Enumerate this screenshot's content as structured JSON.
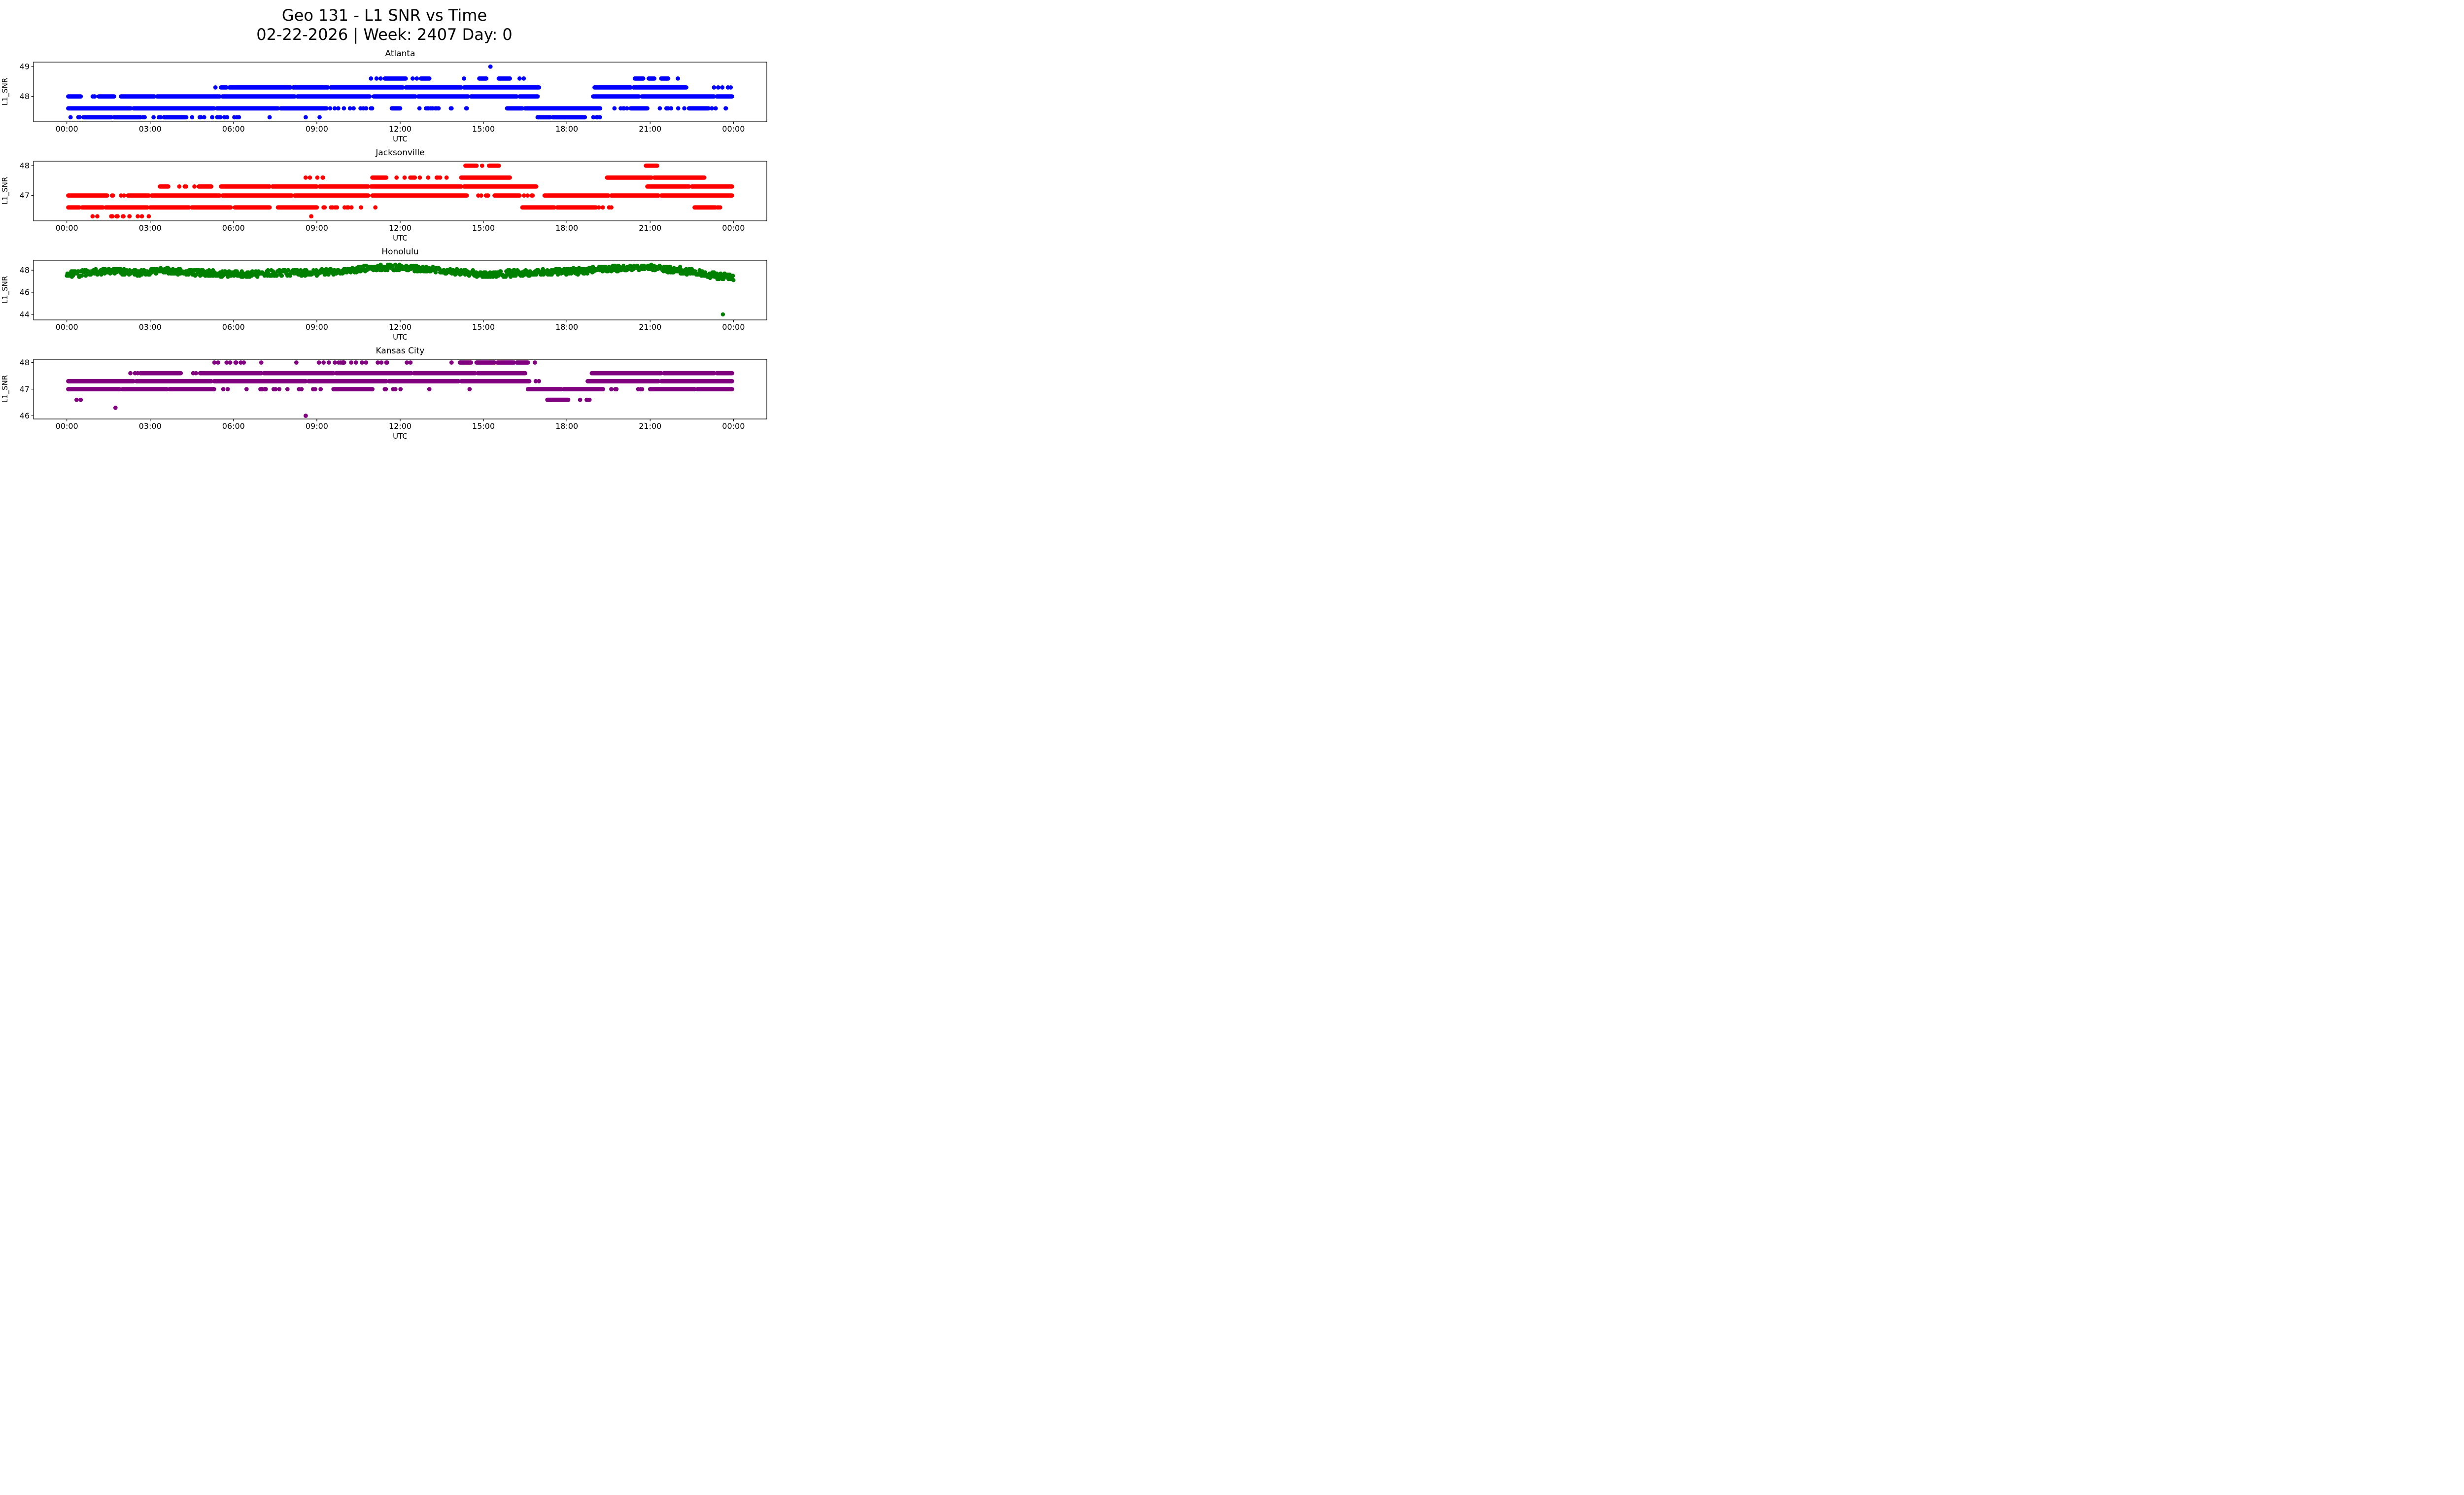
{
  "figure": {
    "title": "Geo 131 - L1 SNR vs Time",
    "subtitle": "02-22-2026 | Week: 2407 Day: 0"
  },
  "chart_data": [
    {
      "type": "scatter",
      "title": "Atlanta",
      "color": "#0000ff",
      "ylabel": "L1_SNR",
      "xlabel": "UTC",
      "ylim": [
        47.15,
        49.15
      ],
      "yticks": [
        48,
        49
      ],
      "xlim": [
        -1.2,
        25.2
      ],
      "xticks": {
        "values": [
          0,
          3,
          6,
          9,
          12,
          15,
          18,
          21,
          24
        ],
        "labels": [
          "00:00",
          "03:00",
          "06:00",
          "09:00",
          "12:00",
          "15:00",
          "18:00",
          "21:00",
          "00:00"
        ]
      },
      "marker_r": 4.4,
      "sparse_density": 6,
      "bands": [
        {
          "y": 49.0,
          "points": [
            15.25
          ]
        },
        {
          "y": 48.6,
          "solid": [
            [
              11.45,
              12.2
            ],
            [
              12.75,
              13.05
            ],
            [
              14.85,
              15.1
            ],
            [
              15.55,
              15.95
            ],
            [
              20.45,
              20.75
            ],
            [
              20.95,
              21.15
            ],
            [
              21.4,
              21.65
            ]
          ],
          "points": [
            10.95,
            11.15,
            11.3,
            12.45,
            12.6,
            14.3,
            16.3,
            16.45,
            22.0
          ]
        },
        {
          "y": 48.3,
          "solid": [
            [
              5.55,
              5.75
            ],
            [
              5.85,
              8.05
            ],
            [
              8.15,
              9.4
            ],
            [
              9.5,
              12.1
            ],
            [
              12.2,
              14.2
            ],
            [
              14.3,
              17.0
            ],
            [
              19.0,
              20.3
            ],
            [
              20.4,
              22.3
            ]
          ],
          "points": [
            5.35,
            23.3,
            23.45,
            23.6,
            23.8,
            23.9
          ]
        },
        {
          "y": 48.0,
          "solid": [
            [
              0.05,
              0.5
            ],
            [
              1.15,
              1.7
            ],
            [
              1.95,
              3.15
            ],
            [
              3.25,
              5.5
            ],
            [
              5.6,
              8.2
            ],
            [
              8.3,
              10.9
            ],
            [
              11.05,
              12.55
            ],
            [
              12.65,
              14.45
            ],
            [
              14.55,
              16.2
            ],
            [
              16.3,
              16.95
            ],
            [
              18.95,
              20.6
            ],
            [
              20.7,
              23.3
            ],
            [
              23.4,
              23.95
            ]
          ],
          "sparse": [
            [
              0.55,
              1.1
            ]
          ]
        },
        {
          "y": 47.6,
          "solid": [
            [
              0.05,
              2.3
            ],
            [
              2.4,
              5.3
            ],
            [
              5.4,
              7.6
            ],
            [
              7.7,
              9.35
            ],
            [
              11.7,
              12.0
            ],
            [
              15.85,
              16.4
            ],
            [
              16.5,
              19.2
            ],
            [
              20.3,
              20.9
            ],
            [
              22.4,
              23.1
            ]
          ],
          "sparse": [
            [
              9.45,
              11.2
            ],
            [
              12.6,
              14.8
            ],
            [
              19.3,
              20.2
            ],
            [
              21.2,
              22.3
            ],
            [
              23.2,
              23.95
            ]
          ]
        },
        {
          "y": 47.3,
          "solid": [
            [
              0.6,
              1.6
            ],
            [
              1.7,
              2.65
            ],
            [
              3.5,
              4.3
            ],
            [
              16.95,
              17.4
            ],
            [
              17.5,
              18.65
            ]
          ],
          "sparse": [
            [
              0.1,
              0.55
            ],
            [
              2.7,
              3.45
            ],
            [
              4.4,
              6.5
            ],
            [
              18.7,
              19.3
            ]
          ],
          "points": [
            7.3,
            8.6,
            9.1
          ]
        }
      ]
    },
    {
      "type": "scatter",
      "title": "Jacksonville",
      "color": "#ff0000",
      "ylabel": "L1_SNR",
      "xlabel": "UTC",
      "ylim": [
        46.15,
        48.15
      ],
      "yticks": [
        47,
        48
      ],
      "xlim": [
        -1.2,
        25.2
      ],
      "xticks": {
        "values": [
          0,
          3,
          6,
          9,
          12,
          15,
          18,
          21,
          24
        ],
        "labels": [
          "00:00",
          "03:00",
          "06:00",
          "09:00",
          "12:00",
          "15:00",
          "18:00",
          "21:00",
          "00:00"
        ]
      },
      "marker_r": 4.4,
      "sparse_density": 6,
      "bands": [
        {
          "y": 48.0,
          "solid": [
            [
              14.35,
              14.75
            ],
            [
              15.2,
              15.55
            ],
            [
              20.85,
              21.25
            ]
          ],
          "points": [
            14.95
          ]
        },
        {
          "y": 47.6,
          "solid": [
            [
              11.0,
              11.5
            ],
            [
              14.2,
              15.95
            ],
            [
              19.45,
              21.05
            ],
            [
              21.15,
              22.95
            ]
          ],
          "sparse": [
            [
              8.5,
              9.3
            ],
            [
              11.7,
              13.7
            ]
          ]
        },
        {
          "y": 47.3,
          "solid": [
            [
              3.35,
              3.65
            ],
            [
              4.75,
              5.2
            ],
            [
              5.55,
              7.3
            ],
            [
              7.4,
              9.0
            ],
            [
              9.1,
              10.85
            ],
            [
              10.95,
              14.2
            ],
            [
              14.3,
              16.9
            ],
            [
              20.9,
              22.4
            ],
            [
              22.5,
              23.95
            ]
          ],
          "sparse": [
            [
              4.0,
              4.6
            ]
          ]
        },
        {
          "y": 47.0,
          "solid": [
            [
              0.05,
              1.45
            ],
            [
              2.2,
              2.95
            ],
            [
              3.05,
              5.5
            ],
            [
              5.6,
              8.1
            ],
            [
              8.2,
              10.85
            ],
            [
              11.0,
              14.4
            ],
            [
              15.4,
              16.3
            ],
            [
              17.2,
              19.5
            ],
            [
              19.6,
              21.3
            ],
            [
              21.4,
              23.95
            ]
          ],
          "sparse": [
            [
              1.5,
              2.1
            ],
            [
              14.5,
              15.3
            ],
            [
              16.4,
              17.1
            ]
          ]
        },
        {
          "y": 46.6,
          "solid": [
            [
              0.05,
              0.45
            ],
            [
              0.55,
              1.3
            ],
            [
              1.4,
              2.9
            ],
            [
              3.0,
              4.4
            ],
            [
              4.5,
              5.9
            ],
            [
              6.05,
              7.3
            ],
            [
              7.6,
              9.0
            ],
            [
              16.4,
              17.55
            ],
            [
              17.65,
              19.05
            ],
            [
              22.6,
              23.35
            ]
          ],
          "sparse": [
            [
              9.2,
              11.2
            ],
            [
              19.1,
              19.7
            ],
            [
              23.4,
              23.9
            ]
          ]
        },
        {
          "y": 46.3,
          "sparse": [
            [
              0.5,
              3.2
            ]
          ],
          "points": [
            8.8
          ]
        }
      ]
    },
    {
      "type": "scatter",
      "title": "Honolulu",
      "color": "#008000",
      "ylabel": "L1_SNR",
      "xlabel": "UTC",
      "ylim": [
        43.5,
        48.9
      ],
      "yticks": [
        44,
        46,
        48
      ],
      "xlim": [
        -1.2,
        25.2
      ],
      "xticks": {
        "values": [
          0,
          3,
          6,
          9,
          12,
          15,
          18,
          21,
          24
        ],
        "labels": [
          "00:00",
          "03:00",
          "06:00",
          "09:00",
          "12:00",
          "15:00",
          "18:00",
          "21:00",
          "00:00"
        ]
      },
      "marker_r": 4.2,
      "trend_density": 50,
      "quantize": 0.1,
      "trend": [
        {
          "t": 0.0,
          "lo": 47.25,
          "hi": 47.9
        },
        {
          "t": 0.7,
          "lo": 47.5,
          "hi": 48.05
        },
        {
          "t": 1.6,
          "lo": 47.7,
          "hi": 48.2
        },
        {
          "t": 2.6,
          "lo": 47.5,
          "hi": 48.0
        },
        {
          "t": 3.5,
          "lo": 47.7,
          "hi": 48.2
        },
        {
          "t": 4.5,
          "lo": 47.5,
          "hi": 48.05
        },
        {
          "t": 6.0,
          "lo": 47.4,
          "hi": 47.95
        },
        {
          "t": 7.5,
          "lo": 47.45,
          "hi": 48.0
        },
        {
          "t": 9.0,
          "lo": 47.5,
          "hi": 48.05
        },
        {
          "t": 10.0,
          "lo": 47.7,
          "hi": 48.2
        },
        {
          "t": 10.8,
          "lo": 47.95,
          "hi": 48.45
        },
        {
          "t": 12.0,
          "lo": 48.0,
          "hi": 48.5
        },
        {
          "t": 13.0,
          "lo": 47.8,
          "hi": 48.3
        },
        {
          "t": 14.0,
          "lo": 47.6,
          "hi": 48.1
        },
        {
          "t": 15.0,
          "lo": 47.35,
          "hi": 47.9
        },
        {
          "t": 16.2,
          "lo": 47.45,
          "hi": 48.0
        },
        {
          "t": 17.2,
          "lo": 47.6,
          "hi": 48.1
        },
        {
          "t": 18.2,
          "lo": 47.6,
          "hi": 48.15
        },
        {
          "t": 19.2,
          "lo": 47.8,
          "hi": 48.35
        },
        {
          "t": 20.2,
          "lo": 48.0,
          "hi": 48.45
        },
        {
          "t": 21.2,
          "lo": 47.95,
          "hi": 48.5
        },
        {
          "t": 22.0,
          "lo": 47.7,
          "hi": 48.3
        },
        {
          "t": 22.8,
          "lo": 47.45,
          "hi": 48.0
        },
        {
          "t": 23.4,
          "lo": 47.2,
          "hi": 47.8
        },
        {
          "t": 24.0,
          "lo": 47.0,
          "hi": 47.6
        }
      ],
      "outliers": [
        [
          23.62,
          44.0
        ]
      ]
    },
    {
      "type": "scatter",
      "title": "Kansas City",
      "color": "#800080",
      "ylabel": "L1_SNR",
      "xlabel": "UTC",
      "ylim": [
        45.88,
        48.12
      ],
      "yticks": [
        46,
        47,
        48
      ],
      "xlim": [
        -1.2,
        25.2
      ],
      "xticks": {
        "values": [
          0,
          3,
          6,
          9,
          12,
          15,
          18,
          21,
          24
        ],
        "labels": [
          "00:00",
          "03:00",
          "06:00",
          "09:00",
          "12:00",
          "15:00",
          "18:00",
          "21:00",
          "00:00"
        ]
      },
      "marker_r": 4.4,
      "sparse_density": 5,
      "bands": [
        {
          "y": 48.0,
          "solid": [
            [
              14.15,
              14.55
            ],
            [
              14.75,
              15.4
            ],
            [
              15.5,
              16.1
            ],
            [
              16.2,
              16.6
            ]
          ],
          "sparse": [
            [
              4.8,
              6.4
            ],
            [
              8.1,
              11.8
            ],
            [
              12.2,
              12.5
            ]
          ],
          "points": [
            7.0,
            13.85,
            16.85
          ]
        },
        {
          "y": 47.6,
          "solid": [
            [
              2.65,
              4.1
            ],
            [
              4.8,
              7.0
            ],
            [
              7.1,
              9.6
            ],
            [
              9.7,
              12.4
            ],
            [
              12.5,
              14.7
            ],
            [
              14.8,
              16.5
            ],
            [
              18.9,
              21.4
            ],
            [
              21.5,
              23.3
            ],
            [
              23.4,
              23.95
            ]
          ],
          "sparse": [
            [
              2.1,
              2.6
            ],
            [
              4.35,
              4.75
            ]
          ]
        },
        {
          "y": 47.3,
          "solid": [
            [
              0.05,
              2.4
            ],
            [
              2.5,
              5.2
            ],
            [
              5.3,
              8.6
            ],
            [
              8.7,
              11.5
            ],
            [
              11.6,
              14.1
            ],
            [
              14.2,
              16.65
            ],
            [
              18.75,
              21.3
            ],
            [
              21.4,
              23.95
            ]
          ],
          "sparse": [
            [
              16.75,
              17.1
            ]
          ]
        },
        {
          "y": 47.0,
          "solid": [
            [
              0.05,
              1.9
            ],
            [
              2.0,
              3.6
            ],
            [
              3.7,
              5.3
            ],
            [
              9.6,
              11.0
            ],
            [
              16.6,
              17.8
            ],
            [
              17.9,
              19.3
            ],
            [
              21.0,
              22.6
            ],
            [
              22.7,
              23.95
            ]
          ],
          "sparse": [
            [
              5.5,
              9.4
            ],
            [
              11.3,
              12.4
            ],
            [
              19.5,
              20.9
            ]
          ],
          "points": [
            13.05,
            14.5
          ]
        },
        {
          "y": 46.6,
          "solid": [
            [
              17.3,
              18.05
            ]
          ],
          "sparse": [
            [
              18.15,
              18.9
            ]
          ],
          "points": [
            0.35,
            0.5
          ]
        },
        {
          "y": 46.3,
          "points": [
            1.75
          ]
        },
        {
          "y": 46.0,
          "points": [
            8.6
          ]
        }
      ]
    }
  ]
}
